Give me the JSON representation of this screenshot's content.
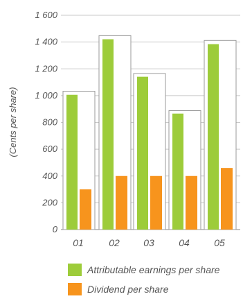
{
  "chart_data": {
    "type": "bar",
    "title": "",
    "xlabel": "",
    "ylabel": "(Cents per share)",
    "ylim": [
      0,
      1600
    ],
    "yticks": [
      0,
      200,
      400,
      600,
      800,
      1000,
      1200,
      1400,
      1600
    ],
    "ytick_labels": [
      "0",
      "200",
      "400",
      "600",
      "800",
      "1 000",
      "1 200",
      "1 400",
      "1 600"
    ],
    "grid": true,
    "legend_position": "bottom",
    "categories": [
      "01",
      "02",
      "03",
      "04",
      "05"
    ],
    "series": [
      {
        "name": "Attributable earnings per share",
        "color": "#9dcc3a",
        "values": [
          1006,
          1421,
          1141,
          866,
          1384
        ]
      },
      {
        "name": "Dividend per share",
        "color": "#f7941d",
        "values": [
          300,
          400,
          400,
          400,
          460
        ]
      }
    ],
    "outline_boxes": [
      1033,
      1448,
      1165,
      888,
      1412
    ]
  }
}
